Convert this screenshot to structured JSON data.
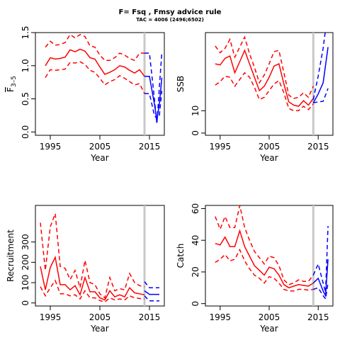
{
  "figure": {
    "title": "F= Fsq , Fmsy advice rule",
    "subtitle": "TAC = 4006 (2496;6502)"
  },
  "colors": {
    "historic": "#ff0000",
    "forecast": "#0000ff",
    "vline": "#c8c8c8",
    "axis": "#000000"
  },
  "chart_data": [
    {
      "type": "line",
      "ylabel": "F3-5",
      "ylabel_main": "F",
      "ylabel_sub": "3–5",
      "xlabel": "Year",
      "xlim": [
        1992,
        2018
      ],
      "ylim": [
        -0.05,
        1.5
      ],
      "xticks": [
        1995,
        2005,
        2015
      ],
      "yticks": [
        0.0,
        0.5,
        1.0,
        1.5
      ],
      "ytick_labels": [
        "0.0",
        "0.5",
        "1.0",
        "1.5"
      ],
      "vline": 2014,
      "series": [
        {
          "role": "historic-estimate",
          "style": "solid",
          "x": [
            1994,
            1995,
            1996,
            1997,
            1998,
            1999,
            2000,
            2001,
            2002,
            2003,
            2004,
            2005,
            2006,
            2007,
            2008,
            2009,
            2010,
            2011,
            2012,
            2013,
            2014
          ],
          "y": [
            1.0,
            1.12,
            1.1,
            1.11,
            1.13,
            1.24,
            1.21,
            1.25,
            1.22,
            1.12,
            1.1,
            0.98,
            0.87,
            0.9,
            0.94,
            1.0,
            0.98,
            0.93,
            0.89,
            0.94,
            0.84
          ]
        },
        {
          "role": "historic-upper",
          "style": "dashed",
          "x": [
            1994,
            1995,
            1996,
            1997,
            1998,
            1999,
            2000,
            2001,
            2002,
            2003,
            2004,
            2005,
            2006,
            2007,
            2008,
            2009,
            2010,
            2011,
            2012,
            2013,
            2014
          ],
          "y": [
            1.28,
            1.37,
            1.31,
            1.32,
            1.35,
            1.47,
            1.42,
            1.47,
            1.44,
            1.3,
            1.28,
            1.16,
            1.08,
            1.08,
            1.12,
            1.19,
            1.16,
            1.11,
            1.08,
            1.19,
            1.19
          ]
        },
        {
          "role": "historic-lower",
          "style": "dashed",
          "x": [
            1994,
            1995,
            1996,
            1997,
            1998,
            1999,
            2000,
            2001,
            2002,
            2003,
            2004,
            2005,
            2006,
            2007,
            2008,
            2009,
            2010,
            2011,
            2012,
            2013,
            2014
          ],
          "y": [
            0.82,
            0.94,
            0.93,
            0.94,
            0.95,
            1.05,
            1.04,
            1.06,
            1.02,
            0.93,
            0.9,
            0.81,
            0.71,
            0.76,
            0.79,
            0.85,
            0.81,
            0.76,
            0.71,
            0.73,
            0.58
          ]
        },
        {
          "role": "forecast-estimate",
          "style": "solid",
          "x": [
            2014,
            2015,
            2016,
            2016.5,
            2017,
            2017.5
          ],
          "y": [
            0.84,
            0.84,
            0.42,
            0.18,
            0.42,
            0.82
          ]
        },
        {
          "role": "forecast-upper",
          "style": "dashed",
          "x": [
            2014,
            2015,
            2016,
            2016.5,
            2017,
            2017.5
          ],
          "y": [
            1.19,
            1.19,
            0.5,
            0.12,
            0.68,
            1.2
          ]
        },
        {
          "role": "forecast-lower",
          "style": "dashed",
          "x": [
            2014,
            2015,
            2016,
            2016.5,
            2017,
            2017.5
          ],
          "y": [
            0.58,
            0.58,
            0.25,
            0.2,
            0.25,
            0.62
          ]
        }
      ]
    },
    {
      "type": "line",
      "ylabel": "SSB",
      "xlabel": "Year",
      "xlim": [
        1992,
        2018
      ],
      "ylim": [
        -1,
        45
      ],
      "xticks": [
        1995,
        2005,
        2015
      ],
      "yticks": [
        0,
        10
      ],
      "ytick_labels": [
        "0",
        "10"
      ],
      "vline": 2014,
      "series": [
        {
          "role": "historic-estimate",
          "style": "solid",
          "x": [
            1994,
            1995,
            1996,
            1997,
            1998,
            1999,
            2000,
            2001,
            2002,
            2003,
            2004,
            2005,
            2006,
            2007,
            2008,
            2009,
            2010,
            2011,
            2012,
            2013,
            2014
          ],
          "y": [
            31,
            30.5,
            33.5,
            34.5,
            27,
            32,
            37,
            31,
            25,
            19,
            21,
            25,
            30,
            31,
            22,
            14,
            12.5,
            12,
            14.5,
            12.5,
            15.5
          ]
        },
        {
          "role": "historic-upper",
          "style": "dashed",
          "x": [
            1994,
            1995,
            1996,
            1997,
            1998,
            1999,
            2000,
            2001,
            2002,
            2003,
            2004,
            2005,
            2006,
            2007,
            2008,
            2009,
            2010,
            2011,
            2012,
            2013,
            2014
          ],
          "y": [
            39,
            36,
            38,
            42,
            34,
            38.5,
            43,
            35.5,
            29.5,
            22.5,
            26,
            31,
            36.5,
            37,
            27,
            17,
            15.5,
            16,
            18,
            16,
            21
          ]
        },
        {
          "role": "historic-lower",
          "style": "dashed",
          "x": [
            1994,
            1995,
            1996,
            1997,
            1998,
            1999,
            2000,
            2001,
            2002,
            2003,
            2004,
            2005,
            2006,
            2007,
            2008,
            2009,
            2010,
            2011,
            2012,
            2013,
            2014
          ],
          "y": [
            21.5,
            23,
            25.5,
            25,
            21,
            24,
            27,
            25,
            20.5,
            15,
            16,
            19,
            22,
            23.5,
            18,
            11,
            10,
            10,
            12,
            10.5,
            13
          ]
        },
        {
          "role": "forecast-estimate",
          "style": "solid",
          "x": [
            2014,
            2015,
            2016,
            2017
          ],
          "y": [
            13.5,
            17.5,
            22.5,
            38.5
          ]
        },
        {
          "role": "forecast-upper",
          "style": "dashed",
          "x": [
            2014,
            2015,
            2016,
            2017
          ],
          "y": [
            15,
            25.5,
            38,
            55
          ]
        },
        {
          "role": "forecast-lower",
          "style": "dashed",
          "x": [
            2014,
            2015,
            2016,
            2017
          ],
          "y": [
            13.5,
            14,
            14.2,
            20
          ]
        }
      ]
    },
    {
      "type": "line",
      "ylabel": "Recruitment",
      "xlabel": "Year",
      "xlim": [
        1992,
        2018
      ],
      "ylim": [
        -15,
        480
      ],
      "xticks": [
        1995,
        2005,
        2015
      ],
      "yticks": [
        0,
        100,
        200,
        300
      ],
      "ytick_labels": [
        "0",
        "100",
        "200",
        "300"
      ],
      "vline": 2014,
      "series": [
        {
          "role": "historic-estimate",
          "style": "solid",
          "x": [
            1993,
            1994,
            1995,
            1996,
            1997,
            1998,
            1999,
            2000,
            2001,
            2002,
            2003,
            2004,
            2005,
            2006,
            2007,
            2008,
            2009,
            2010,
            2011,
            2012,
            2013,
            2014
          ],
          "y": [
            180,
            65,
            175,
            225,
            90,
            90,
            65,
            85,
            40,
            125,
            55,
            55,
            25,
            15,
            60,
            30,
            40,
            30,
            75,
            50,
            45,
            40
          ]
        },
        {
          "role": "historic-upper",
          "style": "dashed",
          "x": [
            1993,
            1994,
            1995,
            1996,
            1997,
            1998,
            1999,
            2000,
            2001,
            2002,
            2003,
            2004,
            2005,
            2006,
            2007,
            2008,
            2009,
            2010,
            2011,
            2012,
            2013,
            2014
          ],
          "y": [
            395,
            160,
            375,
            440,
            180,
            170,
            115,
            160,
            75,
            210,
            100,
            90,
            45,
            25,
            125,
            60,
            70,
            65,
            145,
            100,
            85,
            80
          ]
        },
        {
          "role": "historic-lower",
          "style": "dashed",
          "x": [
            1993,
            1994,
            1995,
            1996,
            1997,
            1998,
            1999,
            2000,
            2001,
            2002,
            2003,
            2004,
            2005,
            2006,
            2007,
            2008,
            2009,
            2010,
            2011,
            2012,
            2013,
            2014
          ],
          "y": [
            80,
            35,
            75,
            110,
            45,
            45,
            35,
            40,
            20,
            60,
            25,
            25,
            12,
            5,
            25,
            15,
            20,
            15,
            35,
            25,
            22,
            20
          ]
        },
        {
          "role": "forecast-estimate",
          "style": "solid",
          "x": [
            2014,
            2015,
            2016,
            2017
          ],
          "y": [
            60,
            42,
            42,
            42
          ]
        },
        {
          "role": "forecast-upper",
          "style": "dashed",
          "x": [
            2014,
            2015,
            2016,
            2017
          ],
          "y": [
            105,
            75,
            75,
            75
          ]
        },
        {
          "role": "forecast-lower",
          "style": "dashed",
          "x": [
            2014,
            2015,
            2016,
            2017
          ],
          "y": [
            35,
            10,
            10,
            10
          ]
        }
      ]
    },
    {
      "type": "line",
      "ylabel": "Catch",
      "xlabel": "Year",
      "xlim": [
        1992,
        2018
      ],
      "ylim": [
        -1.5,
        62
      ],
      "xticks": [
        1995,
        2005,
        2015
      ],
      "yticks": [
        0,
        20,
        40,
        60
      ],
      "ytick_labels": [
        "0",
        "20",
        "40",
        "60"
      ],
      "vline": 2014,
      "series": [
        {
          "role": "historic-estimate",
          "style": "solid",
          "x": [
            1994,
            1995,
            1996,
            1997,
            1998,
            1999,
            2000,
            2001,
            2002,
            2003,
            2004,
            2005,
            2006,
            2007,
            2008,
            2009,
            2010,
            2011,
            2012,
            2013,
            2014
          ],
          "y": [
            38,
            37,
            42,
            36,
            36,
            46,
            36,
            30,
            24,
            21,
            18,
            23,
            22,
            18,
            12,
            10,
            11,
            12,
            11.5,
            11,
            13
          ]
        },
        {
          "role": "historic-upper",
          "style": "dashed",
          "x": [
            1994,
            1995,
            1996,
            1997,
            1998,
            1999,
            2000,
            2001,
            2002,
            2003,
            2004,
            2005,
            2006,
            2007,
            2008,
            2009,
            2010,
            2011,
            2012,
            2013,
            2014
          ],
          "y": [
            55,
            47,
            55,
            48,
            48,
            62,
            48,
            40,
            33,
            29,
            25,
            30,
            29,
            24,
            15,
            12,
            13,
            15,
            14,
            14,
            18
          ]
        },
        {
          "role": "historic-lower",
          "style": "dashed",
          "x": [
            1994,
            1995,
            1996,
            1997,
            1998,
            1999,
            2000,
            2001,
            2002,
            2003,
            2004,
            2005,
            2006,
            2007,
            2008,
            2009,
            2010,
            2011,
            2012,
            2013,
            2014
          ],
          "y": [
            26,
            28,
            31,
            27,
            28,
            34,
            27,
            22,
            18,
            16,
            13,
            17,
            16,
            13,
            9,
            8,
            8,
            9,
            9,
            8.5,
            9
          ]
        },
        {
          "role": "forecast-estimate",
          "style": "solid",
          "x": [
            2014,
            2015,
            2016,
            2016.5,
            2017
          ],
          "y": [
            13,
            16,
            8,
            5,
            28
          ]
        },
        {
          "role": "forecast-upper",
          "style": "dashed",
          "x": [
            2014,
            2015,
            2016,
            2016.5,
            2017
          ],
          "y": [
            18,
            25,
            13,
            7,
            49
          ]
        },
        {
          "role": "forecast-lower",
          "style": "dashed",
          "x": [
            2014,
            2015,
            2016,
            2016.5,
            2017
          ],
          "y": [
            9,
            10,
            5,
            3,
            13
          ]
        }
      ]
    }
  ]
}
